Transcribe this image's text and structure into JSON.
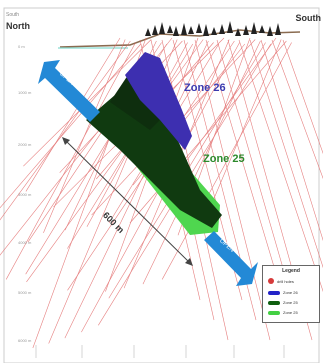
{
  "labels": {
    "north_small": "South",
    "north": "North",
    "south": "South",
    "zone26": "Zone 26",
    "zone25": "Zone 25",
    "distance": "600 m",
    "open_upper": "OPEN",
    "open_lower": "OPEN"
  },
  "depths": [
    "0 m",
    "1000 m",
    "2000 m",
    "3000 m",
    "4000 m",
    "5000 m",
    "6000 m"
  ],
  "legend": {
    "title": "Legend",
    "items": [
      {
        "label": "drill holes",
        "color": "#d63a3a"
      },
      {
        "label": "Zone 26",
        "color": "#2323c8"
      },
      {
        "label": "Zone 25",
        "color": "#0f5e0f"
      },
      {
        "label": "Zone 25",
        "color": "#43d043"
      }
    ]
  },
  "colors": {
    "arrow": "#2389d6",
    "zone26": "#3d2fb0",
    "zone25_dark": "#103a10",
    "zone25_light": "#4fd64f",
    "drill": "#e06060"
  }
}
